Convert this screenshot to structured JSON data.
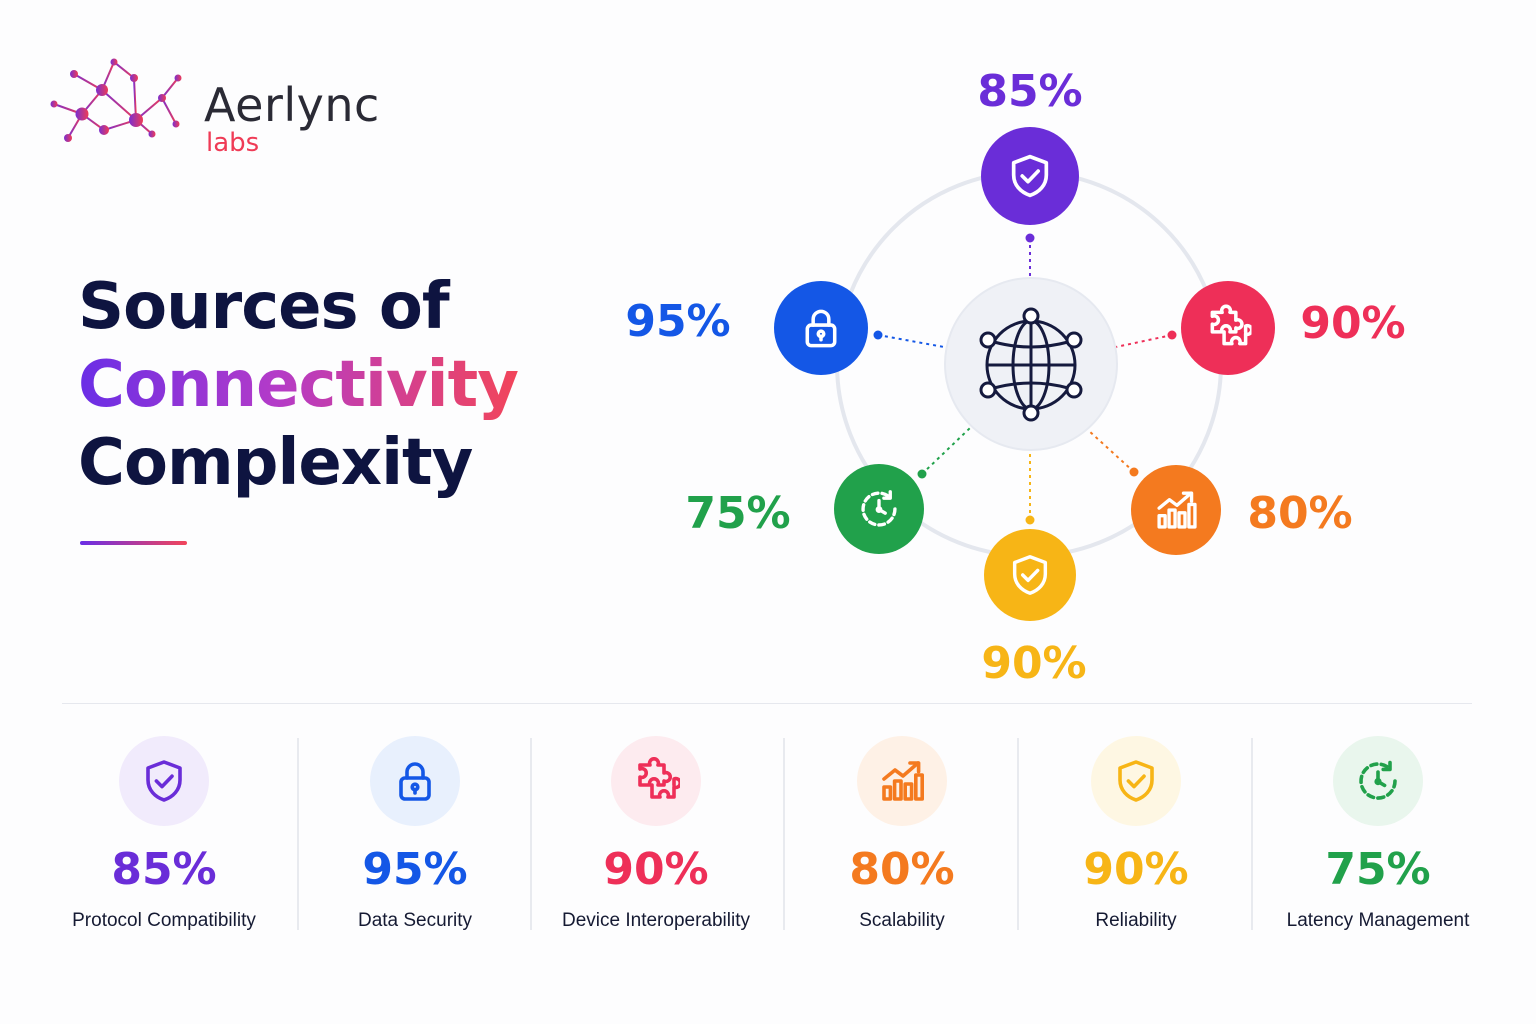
{
  "brand": {
    "name": "Aerlync",
    "sub": "labs"
  },
  "title": {
    "line1": "Sources of",
    "line2": "Connectivity",
    "line3": "Complexity"
  },
  "hub": {
    "icon": "globe-network-icon"
  },
  "items": [
    {
      "key": "protocol",
      "label": "Protocol Compatibility",
      "value": "85%",
      "color": "#6a2dd8",
      "light": "#f1ebfc",
      "icon": "shield-check-icon"
    },
    {
      "key": "security",
      "label": "Data Security",
      "value": "95%",
      "color": "#1457e6",
      "light": "#e8f0fd",
      "icon": "lock-icon"
    },
    {
      "key": "interop",
      "label": "Device Interoperability",
      "value": "90%",
      "color": "#ee2f58",
      "light": "#fdebef",
      "icon": "puzzle-icon"
    },
    {
      "key": "scalability",
      "label": "Scalability",
      "value": "80%",
      "color": "#f47a1f",
      "light": "#fef1e6",
      "icon": "growth-chart-icon"
    },
    {
      "key": "reliability",
      "label": "Reliability",
      "value": "90%",
      "color": "#f7b516",
      "light": "#fef7e3",
      "icon": "shield-check-icon"
    },
    {
      "key": "latency",
      "label": "Latency Management",
      "value": "75%",
      "color": "#21a14b",
      "light": "#e9f6ed",
      "icon": "clock-icon"
    }
  ]
}
